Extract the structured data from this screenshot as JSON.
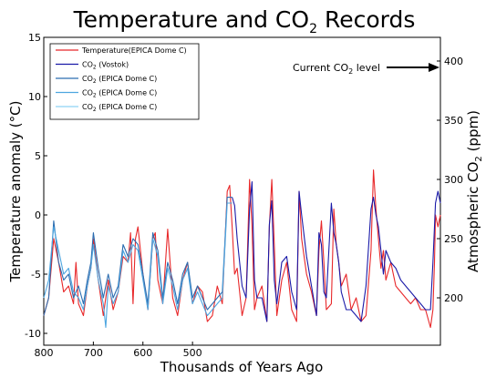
{
  "chart_data": {
    "type": "line",
    "title_main": "Temperature and CO",
    "title_sub": "2",
    "title_tail": " Records",
    "xlabel": "Thousands of Years Ago",
    "ylabel_left": "Temperature anomaly (°C)",
    "ylabel_right_main": "Atmospheric CO",
    "ylabel_right_sub": "2",
    "ylabel_right_tail": " (ppm)",
    "xlim": [
      800,
      0
    ],
    "ylim_left": [
      -11,
      15
    ],
    "ylim_right": [
      160,
      420
    ],
    "x_ticks": [
      800,
      700,
      600,
      500
    ],
    "y_ticks_left": [
      -10,
      -5,
      0,
      5,
      10,
      15
    ],
    "y_ticks_right": [
      200,
      250,
      300,
      350,
      400
    ],
    "grid": false,
    "legend_position": "top-left",
    "legend": [
      {
        "main": "Temperature(EPICA Dome C)",
        "sub": "",
        "tail": "",
        "color": "#e8282a"
      },
      {
        "main": "CO",
        "sub": "2",
        "tail": " (Vostok)",
        "color": "#1a1aa8"
      },
      {
        "main": "CO",
        "sub": "2",
        "tail": " (EPICA Dome C)",
        "color": "#2c6db0"
      },
      {
        "main": "CO",
        "sub": "2",
        "tail": " (EPICA Dome C)",
        "color": "#4ea6e0"
      },
      {
        "main": "CO",
        "sub": "2",
        "tail": " (EPICA Dome C)",
        "color": "#8ed4f5"
      }
    ],
    "annotation": {
      "main": "Current CO",
      "sub": "2",
      "tail": " level",
      "value": 395
    },
    "series": [
      {
        "axis": "left",
        "color": "#e8282a",
        "x": [
          800,
          790,
          780,
          770,
          760,
          750,
          740,
          735,
          730,
          720,
          712,
          705,
          700,
          690,
          680,
          670,
          660,
          650,
          640,
          630,
          625,
          620,
          615,
          610,
          600,
          590,
          580,
          575,
          570,
          560,
          550,
          540,
          530,
          520,
          510,
          500,
          490,
          480,
          470,
          460,
          450,
          440,
          430,
          425,
          420,
          415,
          410,
          400,
          392,
          385,
          380,
          375,
          370,
          360,
          350,
          345,
          340,
          335,
          330,
          320,
          310,
          300,
          290,
          285,
          280,
          270,
          260,
          250,
          245,
          240,
          235,
          230,
          220,
          215,
          210,
          205,
          200,
          190,
          180,
          170,
          160,
          150,
          140,
          135,
          130,
          125,
          120,
          115,
          110,
          100,
          90,
          80,
          70,
          60,
          50,
          40,
          30,
          20,
          15,
          12,
          10,
          5,
          0
        ],
        "y": [
          -8.5,
          -7,
          -2,
          -4,
          -6.5,
          -6,
          -7.5,
          -4,
          -7.5,
          -8.5,
          -6,
          -4.5,
          -2,
          -5.5,
          -8.5,
          -5.5,
          -8,
          -6.5,
          -3.5,
          -4,
          -1.5,
          -7.5,
          -2,
          -1,
          -5,
          -8,
          -2,
          -1.5,
          -5.5,
          -7.5,
          -1.2,
          -7,
          -8.5,
          -5.5,
          -4,
          -7.5,
          -6,
          -6.5,
          -9,
          -8.5,
          -6,
          -7.5,
          2,
          2.5,
          -1,
          -5,
          -4.5,
          -8.5,
          -7,
          3,
          -1,
          -8,
          -7,
          -6,
          -9,
          -1,
          3,
          -2.5,
          -8.5,
          -5.5,
          -4,
          -8,
          -9,
          2,
          -2,
          -5,
          -6.5,
          -8.5,
          -3,
          -0.5,
          -4,
          -8,
          -7.5,
          0.5,
          -2.5,
          -4,
          -6,
          -5,
          -8,
          -7,
          -9,
          -8.5,
          -3,
          3.8,
          0.5,
          -2,
          -4.5,
          -3,
          -5.5,
          -4,
          -6,
          -6.5,
          -7,
          -7.5,
          -7,
          -8,
          -8,
          -9.5,
          -8,
          -4,
          0,
          -1,
          0
        ]
      },
      {
        "axis": "right",
        "color": "#1a1aa8",
        "x": [
          420,
          415,
          410,
          400,
          392,
          385,
          380,
          375,
          370,
          360,
          350,
          345,
          340,
          335,
          330,
          320,
          310,
          300,
          290,
          285,
          280,
          270,
          260,
          250,
          245,
          240,
          235,
          230,
          220,
          215,
          210,
          205,
          200,
          190,
          180,
          170,
          160,
          150,
          140,
          135,
          130,
          125,
          120,
          115,
          110,
          100,
          90,
          80,
          70,
          60,
          50,
          40,
          30,
          20,
          15,
          12,
          10,
          5,
          0
        ],
        "y": [
          285,
          278,
          250,
          210,
          200,
          275,
          298,
          215,
          200,
          200,
          180,
          262,
          282,
          215,
          195,
          230,
          235,
          205,
          190,
          290,
          270,
          235,
          210,
          185,
          255,
          245,
          205,
          200,
          280,
          255,
          245,
          230,
          205,
          190,
          190,
          185,
          180,
          210,
          275,
          285,
          270,
          260,
          240,
          220,
          240,
          230,
          225,
          215,
          210,
          205,
          200,
          195,
          190,
          190,
          230,
          260,
          280,
          290,
          280
        ]
      },
      {
        "axis": "right",
        "color": "#2c6db0",
        "x": [
          800,
          790,
          780,
          770,
          760,
          750,
          740,
          730,
          720,
          712,
          705,
          700,
          690,
          680,
          670,
          660,
          650,
          640,
          630,
          620,
          610,
          600,
          590,
          580,
          570,
          560,
          550,
          540,
          530,
          520,
          510,
          500,
          490,
          480,
          470,
          460,
          450,
          440,
          430,
          420
        ],
        "y": [
          185,
          200,
          265,
          230,
          215,
          220,
          200,
          210,
          195,
          215,
          230,
          255,
          225,
          200,
          220,
          200,
          210,
          245,
          235,
          250,
          245,
          220,
          195,
          255,
          240,
          200,
          230,
          215,
          195,
          220,
          230,
          200,
          210,
          200,
          190,
          195,
          200,
          205,
          285,
          285
        ]
      },
      {
        "axis": "right",
        "color": "#4ea6e0",
        "x": [
          800,
          790,
          780,
          770,
          760,
          750,
          740,
          730,
          720,
          712,
          705,
          700,
          690,
          680,
          675,
          670,
          660,
          650,
          640,
          630,
          620,
          610,
          600,
          590,
          580,
          570,
          560,
          550,
          540,
          530,
          520,
          510,
          500,
          490,
          480,
          470,
          460,
          450,
          440,
          430,
          420
        ],
        "y": [
          200,
          215,
          260,
          240,
          220,
          225,
          205,
          200,
          190,
          210,
          225,
          245,
          215,
          195,
          175,
          210,
          195,
          205,
          240,
          230,
          245,
          240,
          215,
          190,
          250,
          235,
          195,
          225,
          210,
          190,
          215,
          225,
          195,
          205,
          195,
          185,
          190,
          195,
          200,
          280,
          280
        ]
      }
    ]
  }
}
